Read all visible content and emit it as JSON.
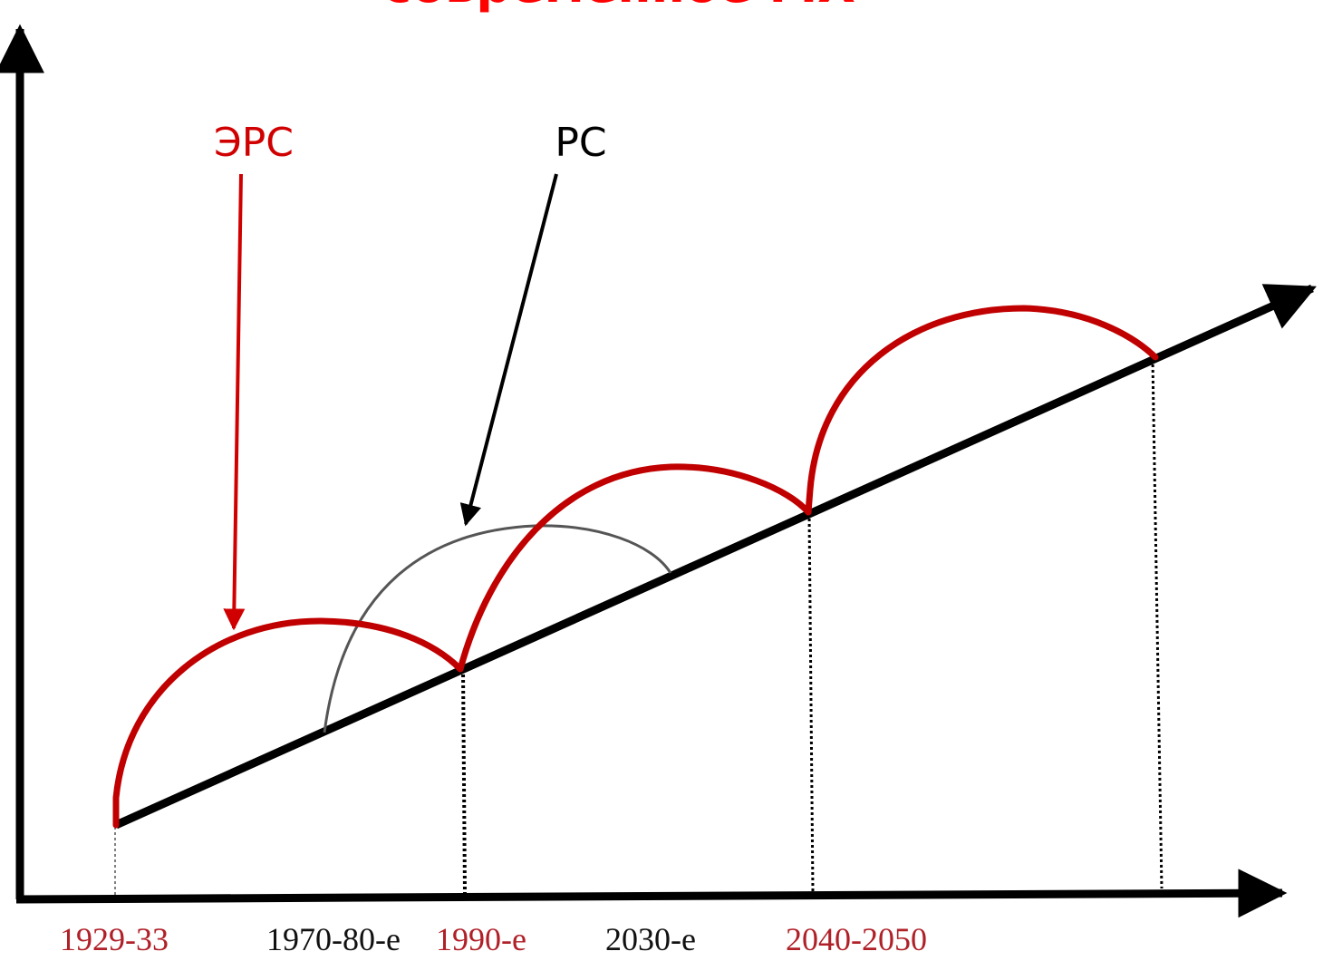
{
  "title": "современное МХ",
  "labels": {
    "ers": "ЭРС",
    "rs": "РС"
  },
  "x_labels": [
    {
      "text": "1929-33",
      "color": "#b02028"
    },
    {
      "text": "1970-80-е",
      "color": "#111111"
    },
    {
      "text": "1990-е",
      "color": "#b02028"
    },
    {
      "text": "2030-е",
      "color": "#111111"
    },
    {
      "text": "2040-2050",
      "color": "#b02028"
    }
  ],
  "colors": {
    "axis": "#000000",
    "trend": "#000000",
    "ers": "#c00000",
    "rs": "#555555",
    "title": "#ff0000"
  }
}
